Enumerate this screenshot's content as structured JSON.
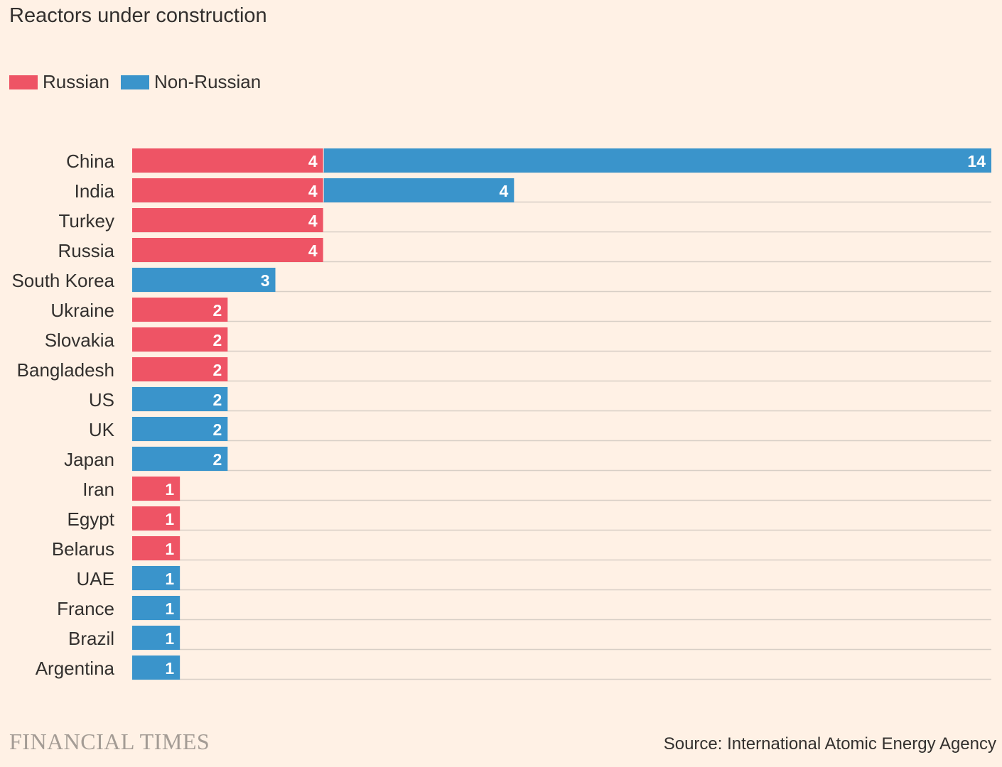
{
  "title": "Reactors under construction",
  "legend": {
    "russian_label": "Russian",
    "non_russian_label": "Non-Russian"
  },
  "colors": {
    "russian": "#ee5465",
    "non_russian": "#3a94cb",
    "background": "#fff1e5",
    "gridline": "#d8cfc6"
  },
  "brand": "FINANCIAL TIMES",
  "source": "Source: International Atomic Energy Agency",
  "chart_data": {
    "type": "bar",
    "orientation": "horizontal",
    "stacked": true,
    "title": "Reactors under construction",
    "categories": [
      "China",
      "India",
      "Turkey",
      "Russia",
      "South Korea",
      "Ukraine",
      "Slovakia",
      "Bangladesh",
      "US",
      "UK",
      "Japan",
      "Iran",
      "Egypt",
      "Belarus",
      "UAE",
      "France",
      "Brazil",
      "Argentina"
    ],
    "series": [
      {
        "name": "Russian",
        "values": [
          4,
          4,
          4,
          4,
          0,
          2,
          2,
          2,
          0,
          0,
          0,
          1,
          1,
          1,
          0,
          0,
          0,
          0
        ]
      },
      {
        "name": "Non-Russian",
        "values": [
          14,
          4,
          0,
          0,
          3,
          0,
          0,
          0,
          2,
          2,
          2,
          0,
          0,
          0,
          1,
          1,
          1,
          1
        ]
      }
    ],
    "xlim": [
      0,
      18
    ],
    "legend_position": "top-left",
    "grid": true
  }
}
